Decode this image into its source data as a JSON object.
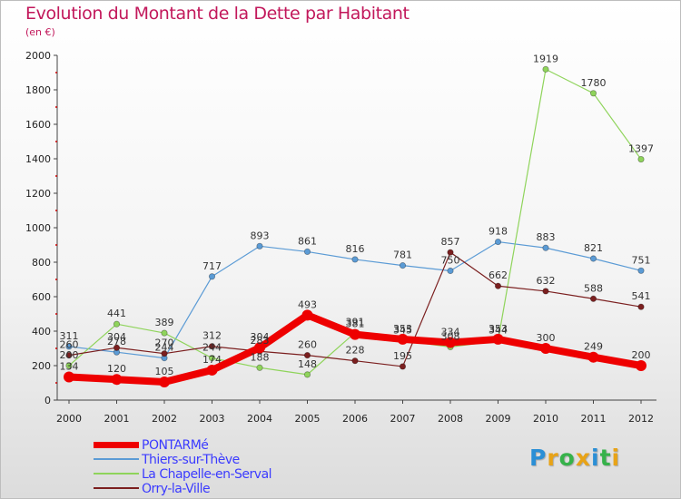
{
  "title": "Evolution du Montant de la Dette par Habitant",
  "unit_label": "(en €)",
  "logo": {
    "letters": [
      "P",
      "r",
      "o",
      "x",
      "i",
      "t",
      "i"
    ],
    "colors": [
      "#2b8fd6",
      "#e8a317",
      "#36b24a",
      "#e8a317",
      "#2b8fd6",
      "#36b24a",
      "#e8a317"
    ]
  },
  "chart_data": {
    "type": "line",
    "categories": [
      "2000",
      "2001",
      "2002",
      "2003",
      "2004",
      "2005",
      "2006",
      "2007",
      "2008",
      "2009",
      "2010",
      "2011",
      "2012"
    ],
    "ylim": [
      0,
      2000
    ],
    "yticks": [
      0,
      200,
      400,
      600,
      800,
      1000,
      1200,
      1400,
      1600,
      1800,
      2000
    ],
    "grid": false,
    "legend_position": "bottom-left",
    "series": [
      {
        "name": "PONTARMé",
        "color": "#ee0000",
        "values": [
          134,
          120,
          105,
          174,
          304,
          493,
          381,
          353,
          334,
          353,
          300,
          249,
          200
        ],
        "labels": [
          "134",
          "120",
          "105",
          "174",
          "304",
          "493",
          "381",
          "353",
          "334",
          "353",
          "300",
          "249",
          "200"
        ]
      },
      {
        "name": "Thiers-sur-Thève",
        "color": "#5b9bd5",
        "values": [
          311,
          278,
          244,
          717,
          893,
          861,
          816,
          781,
          750,
          918,
          883,
          821,
          751
        ],
        "labels": [
          "311",
          "278",
          "244",
          "717",
          "893",
          "861",
          "816",
          "781",
          "750",
          "918",
          "883",
          "821",
          "751"
        ]
      },
      {
        "name": "La Chapelle-en-Serval",
        "color": "#8fd45b",
        "values": [
          200,
          441,
          389,
          244,
          188,
          148,
          391,
          345,
          308,
          344,
          1919,
          1780,
          1397
        ],
        "labels": [
          "200",
          "441",
          "389",
          "244",
          "188",
          "148",
          "391",
          "345",
          "308",
          "344",
          "1919",
          "1780",
          "1397"
        ]
      },
      {
        "name": "Orry-la-Ville",
        "color": "#7b1f1f",
        "values": [
          260,
          304,
          270,
          312,
          283,
          260,
          228,
          195,
          857,
          662,
          632,
          588,
          541
        ],
        "labels": [
          "260",
          "304",
          "270",
          "312",
          "283",
          "260",
          "228",
          "195",
          "857",
          "662",
          "632",
          "588",
          "541"
        ]
      }
    ]
  }
}
